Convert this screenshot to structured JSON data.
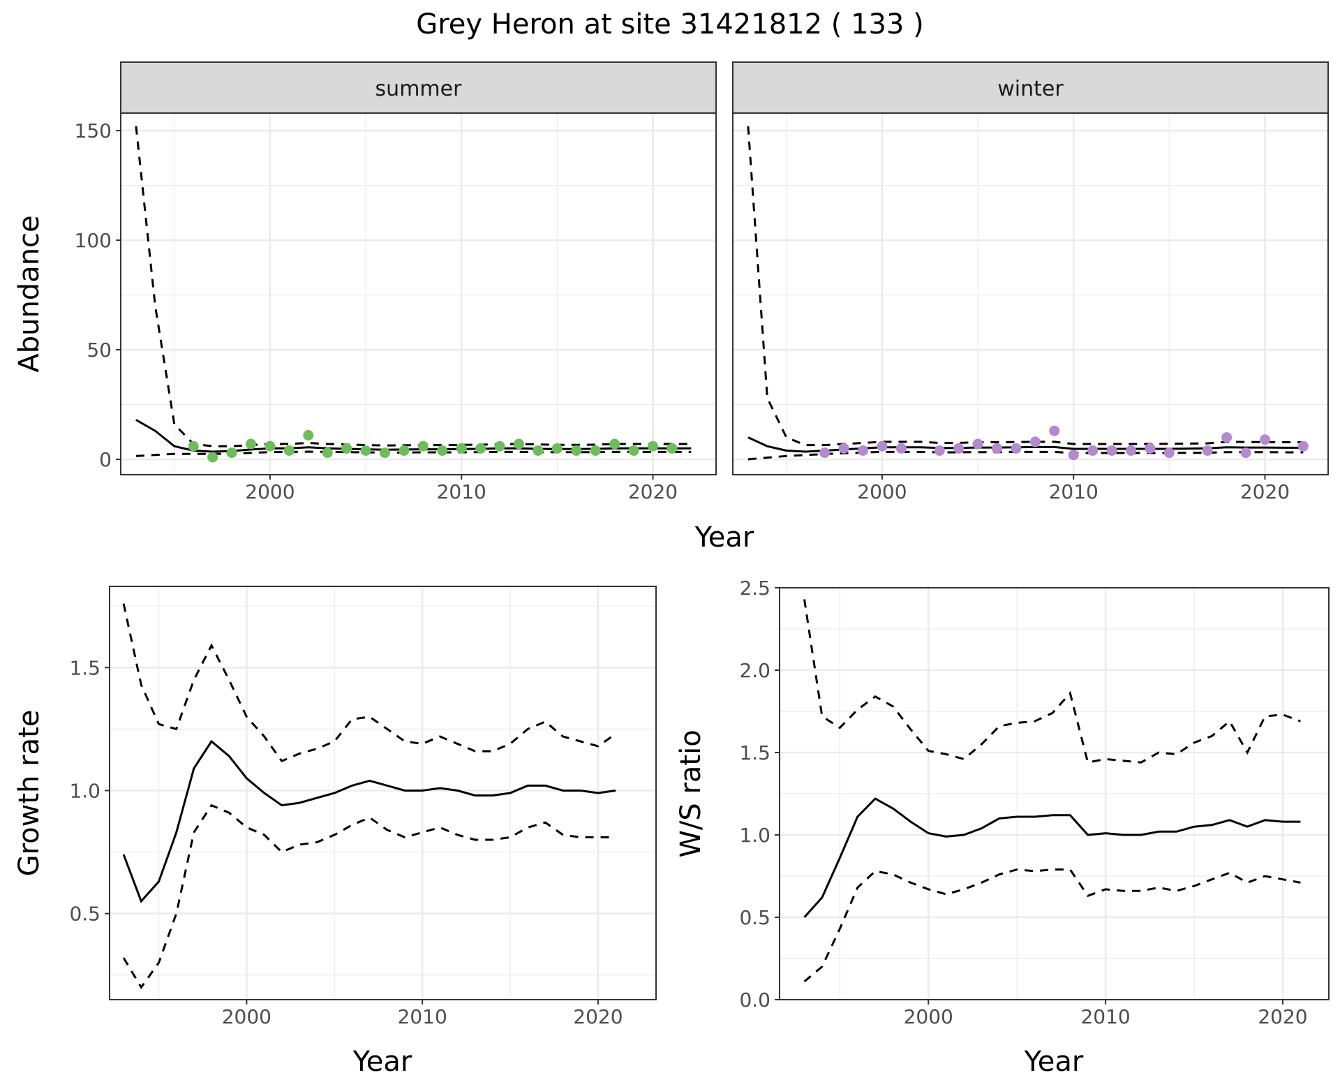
{
  "title": "Grey Heron at site 31421812 ( 133 )",
  "colors": {
    "summer_points": "#6dbd5a",
    "winter_points": "#b28acd",
    "strip_fill": "#d9d9d9",
    "grid": "#ebebeb",
    "line": "#000000"
  },
  "chart_data": [
    {
      "id": "abundance",
      "type": "line",
      "ylabel": "Abundance",
      "xlabel": "Year",
      "xlim": [
        1992.2,
        2023.3
      ],
      "ylim": [
        -7,
        158
      ],
      "xticks": [
        2000,
        2010,
        2020
      ],
      "yticks": [
        0,
        50,
        100,
        150
      ],
      "grid": true,
      "facets": [
        {
          "name": "summer",
          "point_color": "#6dbd5a",
          "x": [
            1993,
            1994,
            1995,
            1996,
            1997,
            1998,
            1999,
            2000,
            2001,
            2002,
            2003,
            2004,
            2005,
            2006,
            2007,
            2008,
            2009,
            2010,
            2011,
            2012,
            2013,
            2014,
            2015,
            2016,
            2017,
            2018,
            2019,
            2020,
            2021,
            2022
          ],
          "estimate": [
            18,
            13,
            6,
            4,
            3.5,
            3.8,
            4.5,
            5,
            5,
            5.5,
            5,
            4.8,
            4.6,
            4.4,
            4.5,
            4.6,
            4.6,
            4.7,
            4.8,
            5,
            5,
            4.8,
            4.7,
            4.7,
            4.8,
            5,
            5,
            5,
            5,
            5
          ],
          "upper": [
            152,
            70,
            16,
            7,
            6,
            6,
            6.5,
            7,
            7,
            7.5,
            7,
            6.8,
            6.5,
            6.3,
            6.4,
            6.5,
            6.5,
            6.6,
            6.7,
            6.9,
            7,
            6.8,
            6.6,
            6.6,
            6.7,
            7,
            7,
            7,
            7,
            7
          ],
          "lower": [
            1.5,
            2,
            2.5,
            2.5,
            2.5,
            2.6,
            3,
            3.3,
            3.4,
            3.5,
            3.4,
            3.3,
            3.2,
            3.1,
            3.1,
            3.2,
            3.2,
            3.2,
            3.3,
            3.4,
            3.4,
            3.3,
            3.3,
            3.3,
            3.3,
            3.4,
            3.4,
            3.4,
            3.4,
            3.4
          ],
          "points": {
            "x": [
              1996,
              1997,
              1998,
              1999,
              2000,
              2001,
              2002,
              2003,
              2004,
              2005,
              2006,
              2007,
              2008,
              2009,
              2010,
              2011,
              2012,
              2013,
              2014,
              2015,
              2016,
              2017,
              2018,
              2019,
              2020,
              2021
            ],
            "y": [
              6,
              1,
              3,
              7,
              6,
              4,
              11,
              3,
              5,
              4,
              3,
              4,
              6,
              4,
              5,
              5,
              6,
              7,
              4,
              5,
              4,
              4,
              7,
              4,
              6,
              5
            ]
          }
        },
        {
          "name": "winter",
          "point_color": "#b28acd",
          "x": [
            1993,
            1994,
            1995,
            1996,
            1997,
            1998,
            1999,
            2000,
            2001,
            2002,
            2003,
            2004,
            2005,
            2006,
            2007,
            2008,
            2009,
            2010,
            2011,
            2012,
            2013,
            2014,
            2015,
            2016,
            2017,
            2018,
            2019,
            2020,
            2021,
            2022
          ],
          "estimate": [
            10,
            6,
            4,
            3.5,
            4,
            4.5,
            5,
            5.5,
            5.5,
            5.5,
            5.2,
            5.2,
            5.4,
            5.4,
            5.5,
            5.6,
            5.6,
            4.8,
            4.8,
            4.8,
            4.8,
            4.8,
            4.8,
            4.9,
            5,
            5.5,
            5.4,
            5.4,
            5.3,
            5.3
          ],
          "upper": [
            152,
            28,
            10,
            6.5,
            6.5,
            7,
            7.5,
            8,
            8,
            8,
            7.5,
            7.5,
            7.8,
            7.8,
            7.9,
            8,
            8,
            7,
            7,
            7,
            7,
            7,
            7.1,
            7.2,
            7.3,
            8,
            7.9,
            7.9,
            7.8,
            7.8
          ],
          "lower": [
            0,
            0.8,
            1.5,
            2,
            2.4,
            2.8,
            3.1,
            3.4,
            3.4,
            3.4,
            3.2,
            3.2,
            3.3,
            3.3,
            3.4,
            3.4,
            3.4,
            2.9,
            2.9,
            2.9,
            2.9,
            2.9,
            2.9,
            3,
            3,
            3.3,
            3.3,
            3.3,
            3.2,
            3.2
          ],
          "points": {
            "x": [
              1997,
              1998,
              1999,
              2000,
              2001,
              2003,
              2004,
              2005,
              2006,
              2007,
              2008,
              2009,
              2010,
              2011,
              2012,
              2013,
              2014,
              2015,
              2017,
              2018,
              2019,
              2020,
              2022
            ],
            "y": [
              3,
              5,
              4,
              6,
              5,
              4,
              5,
              7,
              5,
              5,
              8,
              13,
              2,
              4,
              4,
              4,
              5,
              3,
              4,
              10,
              3,
              9,
              6
            ]
          }
        }
      ]
    },
    {
      "id": "growth",
      "type": "line",
      "ylabel": "Growth rate",
      "xlabel": "Year",
      "xlim": [
        1992.2,
        2023.3
      ],
      "ylim": [
        0.15,
        1.83
      ],
      "xticks": [
        2000,
        2010,
        2020
      ],
      "yticks": [
        0.5,
        1.0,
        1.5
      ],
      "grid": true,
      "x": [
        1993,
        1994,
        1995,
        1996,
        1997,
        1998,
        1999,
        2000,
        2001,
        2002,
        2003,
        2004,
        2005,
        2006,
        2007,
        2008,
        2009,
        2010,
        2011,
        2012,
        2013,
        2014,
        2015,
        2016,
        2017,
        2018,
        2019,
        2020,
        2021
      ],
      "estimate": [
        0.74,
        0.55,
        0.63,
        0.83,
        1.09,
        1.2,
        1.14,
        1.05,
        0.99,
        0.94,
        0.95,
        0.97,
        0.99,
        1.02,
        1.04,
        1.02,
        1.0,
        1.0,
        1.01,
        1.0,
        0.98,
        0.98,
        0.99,
        1.02,
        1.02,
        1.0,
        1.0,
        0.99,
        1.0
      ],
      "upper": [
        1.76,
        1.43,
        1.27,
        1.25,
        1.45,
        1.59,
        1.45,
        1.3,
        1.22,
        1.12,
        1.15,
        1.17,
        1.2,
        1.29,
        1.3,
        1.25,
        1.2,
        1.19,
        1.22,
        1.19,
        1.16,
        1.16,
        1.19,
        1.25,
        1.28,
        1.22,
        1.2,
        1.18,
        1.23
      ],
      "lower": [
        0.32,
        0.2,
        0.3,
        0.5,
        0.83,
        0.94,
        0.91,
        0.85,
        0.82,
        0.75,
        0.78,
        0.79,
        0.82,
        0.86,
        0.89,
        0.84,
        0.81,
        0.83,
        0.85,
        0.82,
        0.8,
        0.8,
        0.81,
        0.85,
        0.87,
        0.82,
        0.81,
        0.81,
        0.81
      ]
    },
    {
      "id": "ws_ratio",
      "type": "line",
      "ylabel": "W/S ratio",
      "xlabel": "Year",
      "xlim": [
        1991.6,
        2022.6
      ],
      "ylim": [
        0.0,
        2.5
      ],
      "xticks": [
        2000,
        2010,
        2020
      ],
      "yticks": [
        0.0,
        0.5,
        1.0,
        1.5,
        2.0,
        2.5
      ],
      "grid": true,
      "x": [
        1993,
        1994,
        1995,
        1996,
        1997,
        1998,
        1999,
        2000,
        2001,
        2002,
        2003,
        2004,
        2005,
        2006,
        2007,
        2008,
        2009,
        2010,
        2011,
        2012,
        2013,
        2014,
        2015,
        2016,
        2017,
        2018,
        2019,
        2020,
        2021
      ],
      "estimate": [
        0.5,
        0.62,
        0.86,
        1.11,
        1.22,
        1.16,
        1.08,
        1.01,
        0.99,
        1.0,
        1.04,
        1.1,
        1.11,
        1.11,
        1.12,
        1.12,
        1.0,
        1.01,
        1.0,
        1.0,
        1.02,
        1.02,
        1.05,
        1.06,
        1.09,
        1.05,
        1.09,
        1.08,
        1.08
      ],
      "upper": [
        2.43,
        1.72,
        1.65,
        1.76,
        1.84,
        1.78,
        1.64,
        1.51,
        1.49,
        1.46,
        1.55,
        1.66,
        1.68,
        1.69,
        1.74,
        1.86,
        1.44,
        1.46,
        1.45,
        1.44,
        1.5,
        1.49,
        1.56,
        1.6,
        1.69,
        1.5,
        1.72,
        1.73,
        1.69
      ],
      "lower": [
        0.11,
        0.2,
        0.43,
        0.68,
        0.78,
        0.76,
        0.71,
        0.67,
        0.64,
        0.67,
        0.71,
        0.76,
        0.79,
        0.78,
        0.79,
        0.79,
        0.63,
        0.67,
        0.66,
        0.66,
        0.68,
        0.66,
        0.69,
        0.73,
        0.77,
        0.71,
        0.75,
        0.73,
        0.71
      ]
    }
  ]
}
